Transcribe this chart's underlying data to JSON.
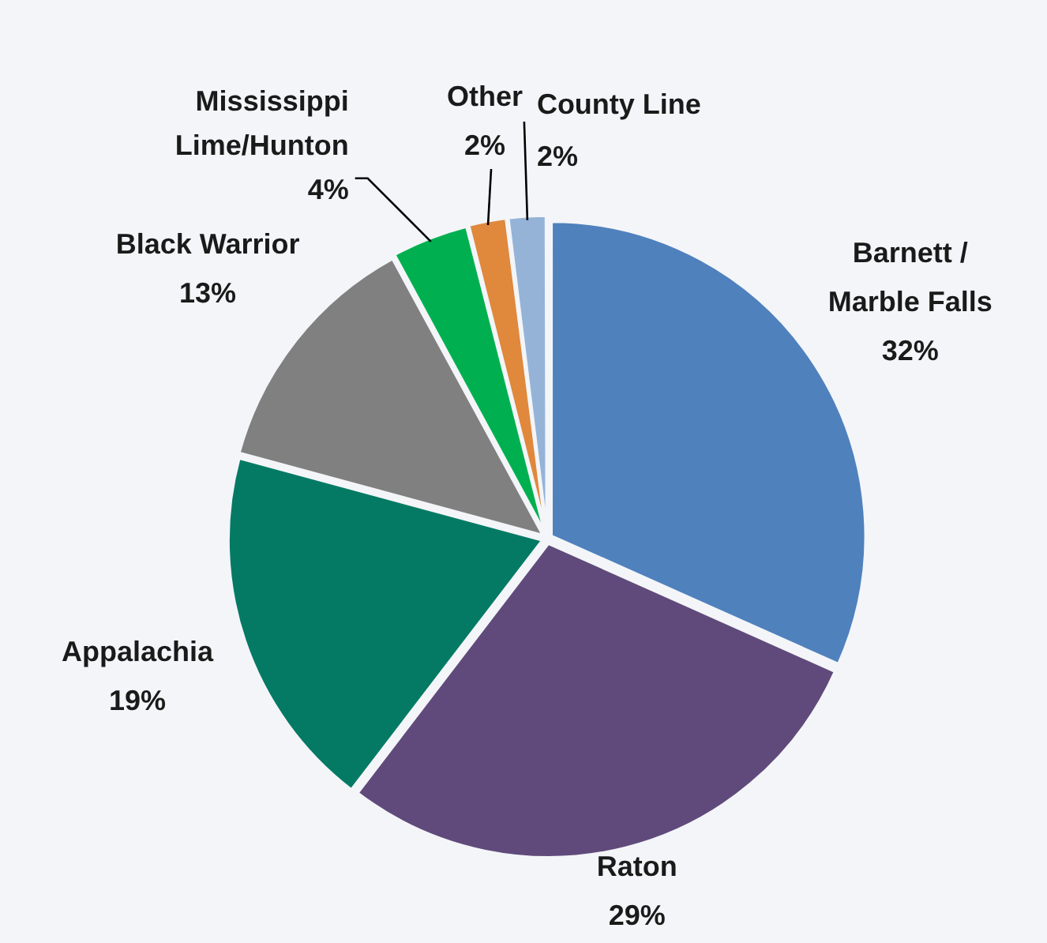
{
  "chart_data": {
    "type": "pie",
    "categories": [
      "Barnett / Marble Falls",
      "Raton",
      "Appalachia",
      "Black Warrior",
      "Mississippi Lime/Hunton",
      "Other",
      "County Line"
    ],
    "values": [
      32,
      29,
      19,
      13,
      4,
      2,
      2
    ],
    "colors": [
      "#4f81bd",
      "#604a7b",
      "#047a64",
      "#808080",
      "#00b050",
      "#e0883c",
      "#95b3d7"
    ],
    "value_labels": [
      "32%",
      "29%",
      "19%",
      "13%",
      "4%",
      "2%",
      "2%"
    ]
  }
}
